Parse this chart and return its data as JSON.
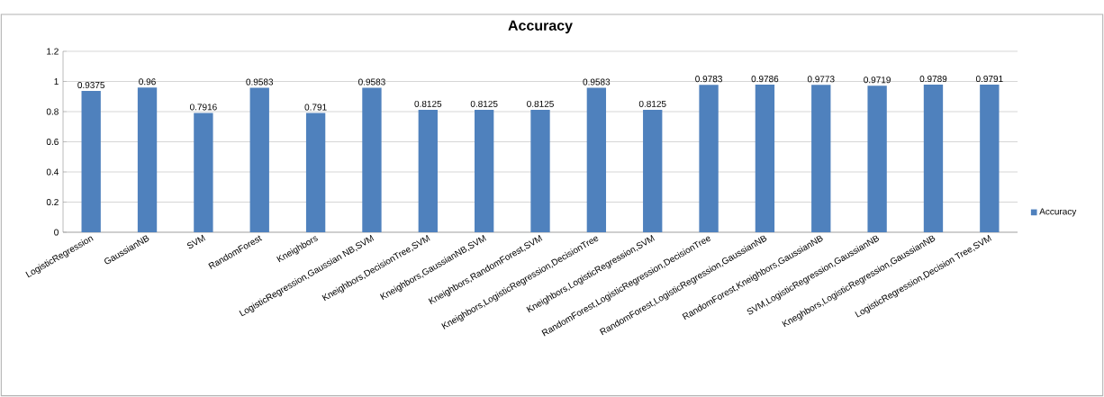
{
  "chart_data": {
    "type": "bar",
    "title": "Accuracy",
    "categories": [
      "LogisticRegression",
      "GaussianNB",
      "SVM",
      "RandomForest",
      "Kneighbors",
      "LogisticRegression,Gaussian NB,SVM",
      "Kneighbors,DecisionTree,SVM",
      "Kneighbors,GaussianNB,SVM",
      "Kneighbors,RandomForest,SVM",
      "Kneighbors,LogisticRegression,DecisionTree",
      "Kneighbors,LogisticRegression,SVM",
      "RandomForest,LogisticRegression,DecisionTree",
      "RandomForest,LogisticRegression,GaussianNB",
      "RandomForest,Kneighbors,GaussianNB",
      "SVM,LogisticRegression,GaussianNB",
      "Kneghbors,LogisticRegression,GaussianNB",
      "LogisticRegression,Decision Tree,SVM"
    ],
    "series": [
      {
        "name": "Accuracy",
        "color": "#4f81bd",
        "values": [
          0.9375,
          0.96,
          0.7916,
          0.9583,
          0.791,
          0.9583,
          0.8125,
          0.8125,
          0.8125,
          0.9583,
          0.8125,
          0.9783,
          0.9786,
          0.9773,
          0.9719,
          0.9789,
          0.9791
        ]
      }
    ],
    "ylim": [
      0,
      1.2
    ],
    "yticks": [
      0,
      0.2,
      0.4,
      0.6,
      0.8,
      1,
      1.2
    ],
    "grid": "y",
    "legend": "right",
    "data_labels": true
  }
}
